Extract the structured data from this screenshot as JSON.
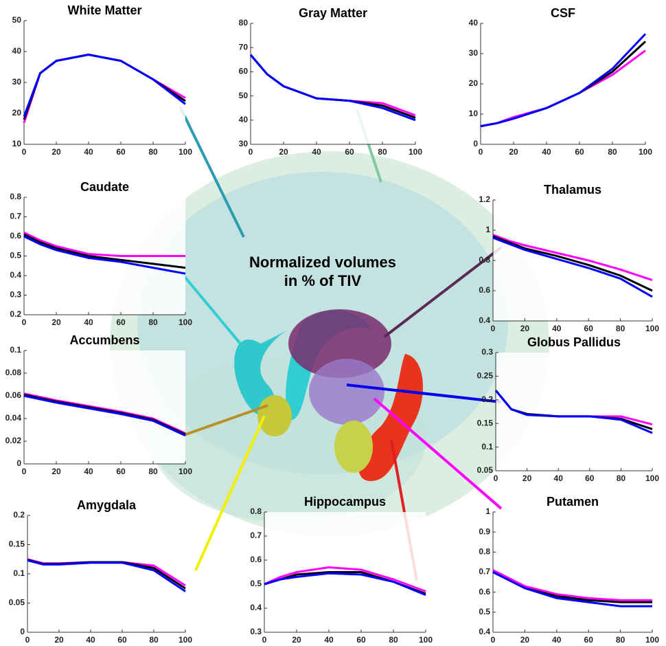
{
  "center_label": [
    "Normalized volumes",
    "in % of TIV"
  ],
  "chart_data": [
    {
      "type": "line",
      "title": "White Matter",
      "x": [
        0,
        10,
        20,
        40,
        60,
        80,
        100
      ],
      "xlim": [
        0,
        100
      ],
      "xticks": [
        0,
        20,
        40,
        60,
        80,
        100
      ],
      "ylim": [
        10,
        50
      ],
      "yticks": [
        10,
        20,
        30,
        40,
        50
      ],
      "series": [
        {
          "color": "#ff00ff",
          "values": [
            17,
            33,
            37,
            39,
            37,
            31,
            25
          ]
        },
        {
          "color": "#000000",
          "values": [
            18,
            33,
            37,
            39,
            37,
            31,
            24
          ]
        },
        {
          "color": "#0000ff",
          "values": [
            19,
            33,
            37,
            39,
            37,
            31,
            23
          ]
        }
      ]
    },
    {
      "type": "line",
      "title": "Gray Matter",
      "x": [
        0,
        10,
        20,
        40,
        60,
        80,
        100
      ],
      "xlim": [
        0,
        100
      ],
      "xticks": [
        0,
        20,
        40,
        60,
        80,
        100
      ],
      "ylim": [
        30,
        80
      ],
      "yticks": [
        30,
        40,
        50,
        60,
        70,
        80
      ],
      "series": [
        {
          "color": "#ff00ff",
          "values": [
            67,
            59,
            54,
            49,
            48,
            47,
            42
          ]
        },
        {
          "color": "#000000",
          "values": [
            67,
            59,
            54,
            49,
            48,
            46,
            41
          ]
        },
        {
          "color": "#0000ff",
          "values": [
            67,
            59,
            54,
            49,
            48,
            45,
            40
          ]
        }
      ]
    },
    {
      "type": "line",
      "title": "CSF",
      "x": [
        0,
        10,
        20,
        40,
        60,
        80,
        100
      ],
      "xlim": [
        0,
        100
      ],
      "xticks": [
        0,
        20,
        40,
        60,
        80,
        100
      ],
      "ylim": [
        0,
        40
      ],
      "yticks": [
        0,
        10,
        20,
        30,
        40
      ],
      "series": [
        {
          "color": "#ff00ff",
          "values": [
            6,
            7,
            9,
            12,
            17,
            23,
            31
          ]
        },
        {
          "color": "#000000",
          "values": [
            6,
            7,
            8.5,
            12,
            17,
            24,
            34
          ]
        },
        {
          "color": "#0000ff",
          "values": [
            6,
            7,
            8.5,
            12,
            17,
            25,
            36.5
          ]
        }
      ]
    },
    {
      "type": "line",
      "title": "Caudate",
      "x": [
        0,
        10,
        20,
        40,
        60,
        80,
        100
      ],
      "xlim": [
        0,
        100
      ],
      "xticks": [
        0,
        20,
        40,
        60,
        80,
        100
      ],
      "ylim": [
        0.2,
        0.8
      ],
      "yticks": [
        0.2,
        0.3,
        0.4,
        0.5,
        0.6,
        0.7,
        0.8
      ],
      "series": [
        {
          "color": "#ff00ff",
          "values": [
            0.62,
            0.58,
            0.55,
            0.51,
            0.5,
            0.5,
            0.5
          ]
        },
        {
          "color": "#000000",
          "values": [
            0.61,
            0.57,
            0.54,
            0.5,
            0.48,
            0.46,
            0.44
          ]
        },
        {
          "color": "#0000ff",
          "values": [
            0.6,
            0.56,
            0.53,
            0.49,
            0.47,
            0.44,
            0.41
          ]
        }
      ]
    },
    {
      "type": "line",
      "title": "Thalamus",
      "x": [
        0,
        10,
        20,
        40,
        60,
        80,
        100
      ],
      "xlim": [
        0,
        100
      ],
      "xticks": [
        0,
        20,
        40,
        60,
        80,
        100
      ],
      "ylim": [
        0.4,
        1.2
      ],
      "yticks": [
        0.4,
        0.6,
        0.8,
        1,
        1.2
      ],
      "series": [
        {
          "color": "#ff00ff",
          "values": [
            0.97,
            0.93,
            0.9,
            0.85,
            0.8,
            0.74,
            0.67
          ]
        },
        {
          "color": "#000000",
          "values": [
            0.96,
            0.92,
            0.88,
            0.83,
            0.77,
            0.7,
            0.6
          ]
        },
        {
          "color": "#0000ff",
          "values": [
            0.95,
            0.91,
            0.87,
            0.81,
            0.75,
            0.68,
            0.56
          ]
        }
      ]
    },
    {
      "type": "line",
      "title": "Accumbens",
      "x": [
        0,
        10,
        20,
        40,
        60,
        80,
        100
      ],
      "xlim": [
        0,
        100
      ],
      "xticks": [
        0,
        20,
        40,
        60,
        80,
        100
      ],
      "ylim": [
        0,
        0.1
      ],
      "yticks": [
        0,
        0.02,
        0.04,
        0.06,
        0.08,
        0.1
      ],
      "series": [
        {
          "color": "#ff00ff",
          "values": [
            0.062,
            0.059,
            0.056,
            0.051,
            0.046,
            0.04,
            0.027
          ]
        },
        {
          "color": "#000000",
          "values": [
            0.061,
            0.058,
            0.055,
            0.05,
            0.045,
            0.039,
            0.026
          ]
        },
        {
          "color": "#0000ff",
          "values": [
            0.06,
            0.057,
            0.054,
            0.049,
            0.044,
            0.038,
            0.025
          ]
        }
      ]
    },
    {
      "type": "line",
      "title": "Globus Pallidus",
      "x": [
        0,
        10,
        20,
        40,
        60,
        80,
        100
      ],
      "xlim": [
        0,
        100
      ],
      "xticks": [
        0,
        20,
        40,
        60,
        80,
        100
      ],
      "ylim": [
        0.05,
        0.3
      ],
      "yticks": [
        0.05,
        0.1,
        0.15,
        0.2,
        0.25,
        0.3
      ],
      "series": [
        {
          "color": "#ff00ff",
          "values": [
            0.22,
            0.18,
            0.17,
            0.165,
            0.165,
            0.165,
            0.148
          ]
        },
        {
          "color": "#000000",
          "values": [
            0.22,
            0.18,
            0.17,
            0.165,
            0.165,
            0.16,
            0.138
          ]
        },
        {
          "color": "#0000ff",
          "values": [
            0.22,
            0.18,
            0.168,
            0.165,
            0.165,
            0.158,
            0.13
          ]
        }
      ]
    },
    {
      "type": "line",
      "title": "Amygdala",
      "x": [
        0,
        10,
        20,
        40,
        60,
        80,
        100
      ],
      "xlim": [
        0,
        100
      ],
      "xticks": [
        0,
        20,
        40,
        60,
        80,
        100
      ],
      "ylim": [
        0,
        0.2
      ],
      "yticks": [
        0,
        0.05,
        0.1,
        0.15,
        0.2
      ],
      "series": [
        {
          "color": "#ff00ff",
          "values": [
            0.125,
            0.118,
            0.118,
            0.12,
            0.12,
            0.114,
            0.08
          ]
        },
        {
          "color": "#000000",
          "values": [
            0.124,
            0.117,
            0.117,
            0.12,
            0.12,
            0.11,
            0.075
          ]
        },
        {
          "color": "#0000ff",
          "values": [
            0.123,
            0.116,
            0.116,
            0.119,
            0.119,
            0.106,
            0.07
          ]
        }
      ]
    },
    {
      "type": "line",
      "title": "Hippocampus",
      "x": [
        0,
        10,
        20,
        40,
        60,
        80,
        100
      ],
      "xlim": [
        0,
        100
      ],
      "xticks": [
        0,
        20,
        40,
        60,
        80,
        100
      ],
      "ylim": [
        0.3,
        0.8
      ],
      "yticks": [
        0.3,
        0.4,
        0.5,
        0.6,
        0.7,
        0.8
      ],
      "series": [
        {
          "color": "#ff00ff",
          "values": [
            0.5,
            0.53,
            0.55,
            0.57,
            0.56,
            0.52,
            0.47
          ]
        },
        {
          "color": "#000000",
          "values": [
            0.5,
            0.52,
            0.54,
            0.55,
            0.55,
            0.51,
            0.46
          ]
        },
        {
          "color": "#0000ff",
          "values": [
            0.5,
            0.52,
            0.53,
            0.545,
            0.54,
            0.51,
            0.455
          ]
        }
      ]
    },
    {
      "type": "line",
      "title": "Putamen",
      "x": [
        0,
        10,
        20,
        40,
        60,
        80,
        100
      ],
      "xlim": [
        0,
        100
      ],
      "xticks": [
        0,
        20,
        40,
        60,
        80,
        100
      ],
      "ylim": [
        0.4,
        1
      ],
      "yticks": [
        0.4,
        0.5,
        0.6,
        0.7,
        0.8,
        0.9,
        1
      ],
      "series": [
        {
          "color": "#ff00ff",
          "values": [
            0.71,
            0.67,
            0.63,
            0.59,
            0.57,
            0.56,
            0.56
          ]
        },
        {
          "color": "#000000",
          "values": [
            0.7,
            0.66,
            0.62,
            0.58,
            0.56,
            0.55,
            0.55
          ]
        },
        {
          "color": "#0000ff",
          "values": [
            0.7,
            0.66,
            0.62,
            0.57,
            0.55,
            0.53,
            0.53
          ]
        }
      ]
    }
  ]
}
